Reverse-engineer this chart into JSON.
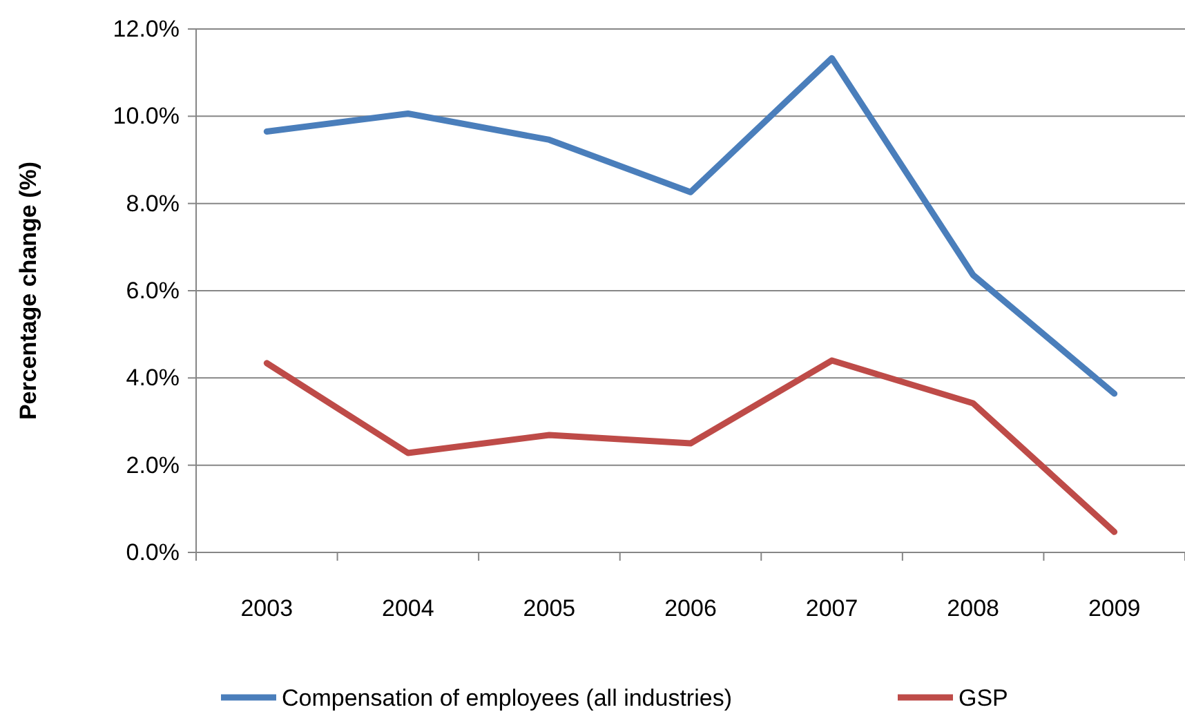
{
  "chart_data": {
    "type": "line",
    "ylabel": "Percentage change  (%)",
    "categories": [
      "2003",
      "2004",
      "2005",
      "2006",
      "2007",
      "2008",
      "2009"
    ],
    "series": [
      {
        "name": "Compensation of employees (all industries)",
        "color": "#4a7ebb",
        "values": [
          9.65,
          10.06,
          9.46,
          8.26,
          11.33,
          6.36,
          3.64
        ]
      },
      {
        "name": "GSP",
        "color": "#be4b48",
        "values": [
          4.34,
          2.28,
          2.69,
          2.5,
          4.4,
          3.42,
          0.47
        ]
      }
    ],
    "ylim": [
      0,
      12
    ],
    "yticks": [
      {
        "value": 0,
        "label": "0.0%"
      },
      {
        "value": 2,
        "label": "2.0%"
      },
      {
        "value": 4,
        "label": "4.0%"
      },
      {
        "value": 6,
        "label": "6.0%"
      },
      {
        "value": 8,
        "label": "8.0%"
      },
      {
        "value": 10,
        "label": "10.0%"
      },
      {
        "value": 12,
        "label": "12.0%"
      }
    ],
    "grid": "y",
    "legend": "bottom",
    "marker": "none",
    "line_style": "solid"
  }
}
